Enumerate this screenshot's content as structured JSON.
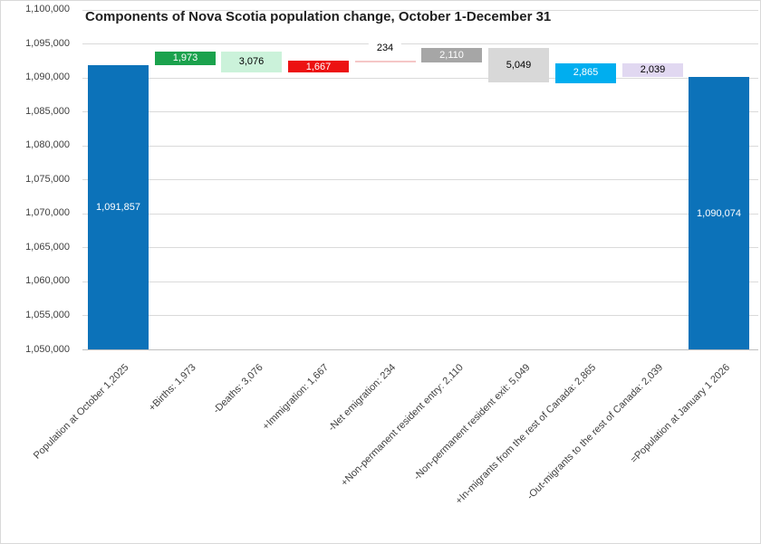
{
  "title": "Components of Nova Scotia population change, October 1-December 31",
  "colors": {
    "background": "#FFFFFF",
    "chart_border": "#D9D9D9",
    "gridline": "#DADADA",
    "axis_line": "#BFBFBF",
    "axis_text": "#404040",
    "title_text": "#1F1F1F",
    "total_blue": "#0C72B9",
    "births_green": "#1BA24D",
    "deaths_light_green": "#CBF2DA",
    "immigration_red": "#EC1212",
    "net_emigration_pink": "#F5C7C7",
    "npr_entry_gray": "#A6A6A6",
    "npr_exit_light_gray": "#D8D8D8",
    "in_migrants_cyan": "#00AEEF",
    "out_migrants_lavender": "#E1D8F1"
  },
  "chart_data": {
    "type": "bar",
    "subtype": "waterfall",
    "title": "Components of Nova Scotia population change, October 1-December 31",
    "xlabel": "",
    "ylabel": "",
    "grid": true,
    "legend": "none",
    "y_axis": {
      "min": 1050000,
      "max": 1100000,
      "step": 5000,
      "ticks": [
        {
          "value": 1100000,
          "label": "1,100,000"
        },
        {
          "value": 1095000,
          "label": "1,095,000"
        },
        {
          "value": 1090000,
          "label": "1,090,000"
        },
        {
          "value": 1085000,
          "label": "1,085,000"
        },
        {
          "value": 1080000,
          "label": "1,080,000"
        },
        {
          "value": 1075000,
          "label": "1,075,000"
        },
        {
          "value": 1070000,
          "label": "1,070,000"
        },
        {
          "value": 1065000,
          "label": "1,065,000"
        },
        {
          "value": 1060000,
          "label": "1,060,000"
        },
        {
          "value": 1055000,
          "label": "1,055,000"
        },
        {
          "value": 1050000,
          "label": "1,050,000"
        }
      ]
    },
    "categories": [
      "Population at October 1,2025",
      "+Births: 1,973",
      "-Deaths: 3,076",
      "+Immigration: 1,667",
      "-Net emigration: 234",
      "+Non-permanent resident entry: 2,110",
      "-Non-permanent resident exit: 5,049",
      "+In-migrants from the rest of Canada: 2,865",
      "-Out-migrants to the rest of Canada: 2,039",
      "=Population at January 1 2026"
    ],
    "bars": [
      {
        "category": "Population at October 1,2025",
        "kind": "total",
        "value": 1091857,
        "label": "1,091,857",
        "color": "#0C72B9",
        "label_color": "#FFFFFF",
        "label_position": "inside"
      },
      {
        "category": "+Births: 1,973",
        "kind": "increase",
        "value": 1973,
        "label": "1,973",
        "color": "#1BA24D",
        "label_color": "#FFFFFF",
        "label_position": "inside"
      },
      {
        "category": "-Deaths: 3,076",
        "kind": "decrease",
        "value": 3076,
        "label": "3,076",
        "color": "#CBF2DA",
        "label_color": "#000000",
        "label_position": "inside"
      },
      {
        "category": "+Immigration: 1,667",
        "kind": "increase",
        "value": 1667,
        "label": "1,667",
        "color": "#EC1212",
        "label_color": "#FFFFFF",
        "label_position": "inside"
      },
      {
        "category": "-Net emigration: 234",
        "kind": "decrease",
        "value": 234,
        "label": "234",
        "color": "#F5C7C7",
        "label_color": "#000000",
        "label_position": "above"
      },
      {
        "category": "+Non-permanent resident entry: 2,110",
        "kind": "increase",
        "value": 2110,
        "label": "2,110",
        "color": "#A6A6A6",
        "label_color": "#FFFFFF",
        "label_position": "inside"
      },
      {
        "category": "-Non-permanent resident exit: 5,049",
        "kind": "decrease",
        "value": 5049,
        "label": "5,049",
        "color": "#D8D8D8",
        "label_color": "#000000",
        "label_position": "inside"
      },
      {
        "category": "+In-migrants from the rest of Canada: 2,865",
        "kind": "increase",
        "value": 2865,
        "label": "2,865",
        "color": "#00AEEF",
        "label_color": "#FFFFFF",
        "label_position": "inside"
      },
      {
        "category": "-Out-migrants to the rest of Canada: 2,039",
        "kind": "decrease",
        "value": 2039,
        "label": "2,039",
        "color": "#E1D8F1",
        "label_color": "#000000",
        "label_position": "inside"
      },
      {
        "category": "=Population at January 1 2026",
        "kind": "total",
        "value": 1090074,
        "label": "1,090,074",
        "color": "#0C72B9",
        "label_color": "#FFFFFF",
        "label_position": "inside"
      }
    ]
  }
}
